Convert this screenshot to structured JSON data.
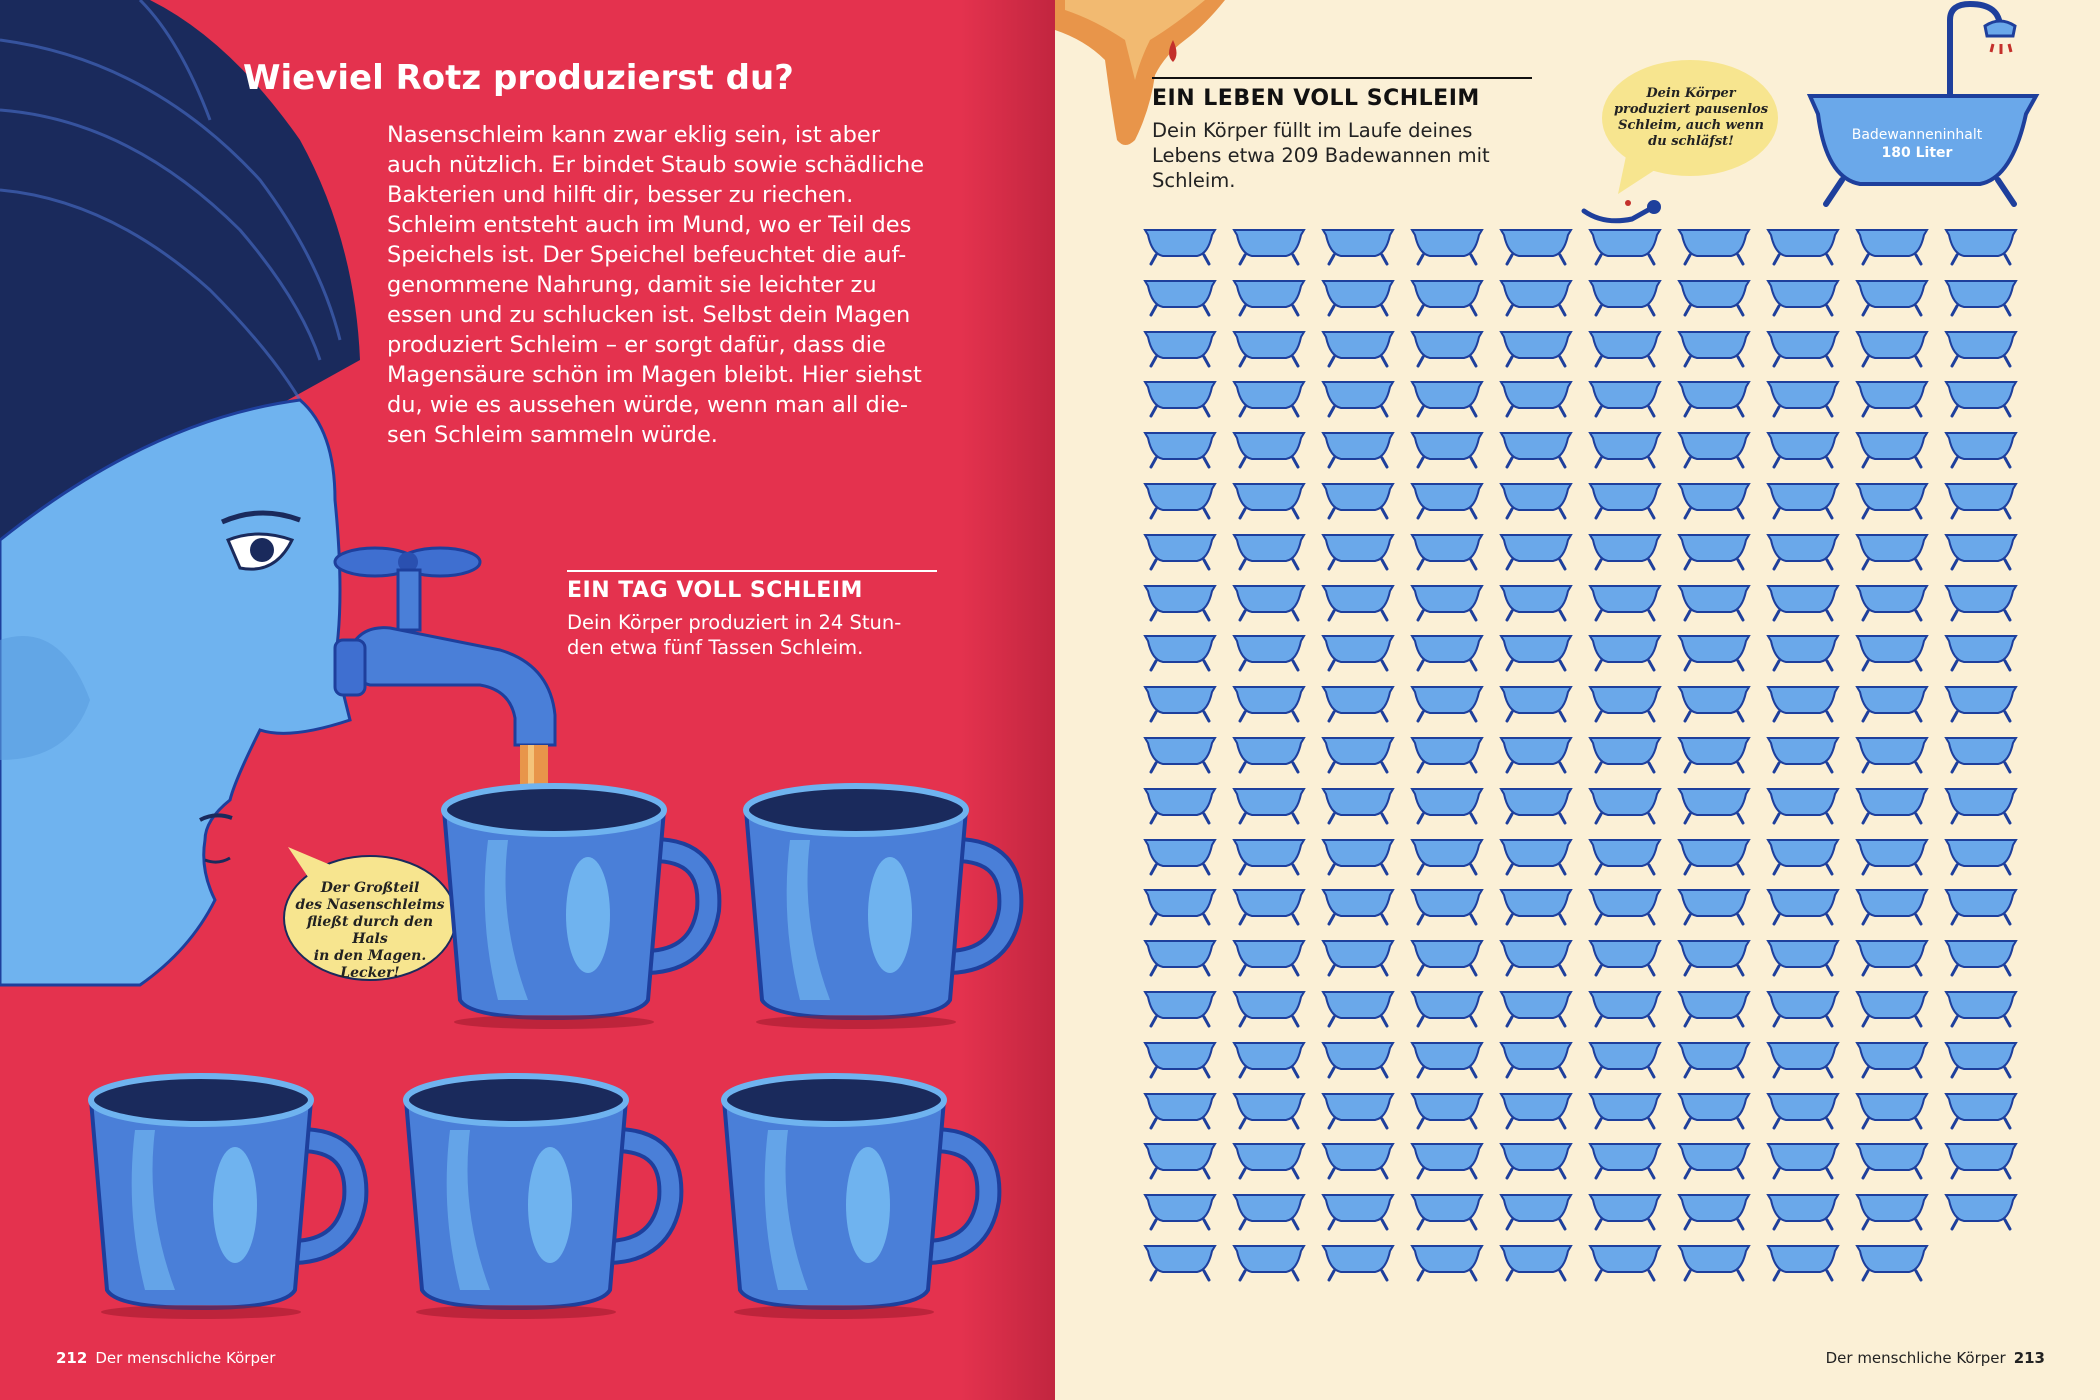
{
  "left_page": {
    "title": "Wieviel Rotz produzierst du?",
    "intro_lines": [
      "Nasenschleim kann zwar eklig sein, ist aber",
      "auch nützlich. Er bindet Staub sowie schädliche",
      "Bakterien und hilft dir, besser zu riechen.",
      "Schleim entsteht auch im Mund, wo er Teil des",
      "Speichels ist. Der Speichel befeuchtet die auf-",
      "genommene Nahrung, damit sie leichter zu",
      "essen und zu schlucken ist. Selbst dein Magen",
      "produziert Schleim – er sorgt dafür, dass die",
      "Magensäure schön im Magen bleibt. Hier siehst",
      "du, wie es aussehen würde, wenn man all die-",
      "sen Schleim sammeln würde."
    ],
    "tag_heading": "EIN TAG VOLL SCHLEIM",
    "tag_lines": [
      "Dein Körper produziert in 24 Stun-",
      "den etwa fünf Tassen Schleim."
    ],
    "bubble_lines": [
      "Der Großteil",
      "des Nasenschleims",
      "fließt durch den Hals",
      "in den Magen.",
      "Lecker!"
    ],
    "cup_count": 5,
    "folio_number": "212",
    "folio_label": "Der menschliche Körper"
  },
  "right_page": {
    "heading": "EIN LEBEN VOLL SCHLEIM",
    "text_lines": [
      "Dein Körper füllt im Laufe deines",
      "Lebens etwa 209 Badewannen mit",
      "Schleim."
    ],
    "bubble_lines": [
      "Dein Körper",
      "produziert pausenlos",
      "Schleim, auch wenn",
      "du schläfst!"
    ],
    "bathtub_label": "Badewanneninhalt",
    "bathtub_volume": "180 Liter",
    "bathtub_count": 209,
    "bathtub_columns": 10,
    "folio_label": "Der menschliche Körper",
    "folio_number": "213"
  },
  "colors": {
    "left_background": "#e4324e",
    "right_background": "#fbf0d6",
    "tub_blue": "#6aa8ea",
    "tub_outline": "#1e3f9c",
    "skin_blue": "#6fb3ef",
    "hair_dark": "#1a2a5c",
    "speech_bubble": "#f7e58f",
    "slime_orange": "#e8954a"
  }
}
